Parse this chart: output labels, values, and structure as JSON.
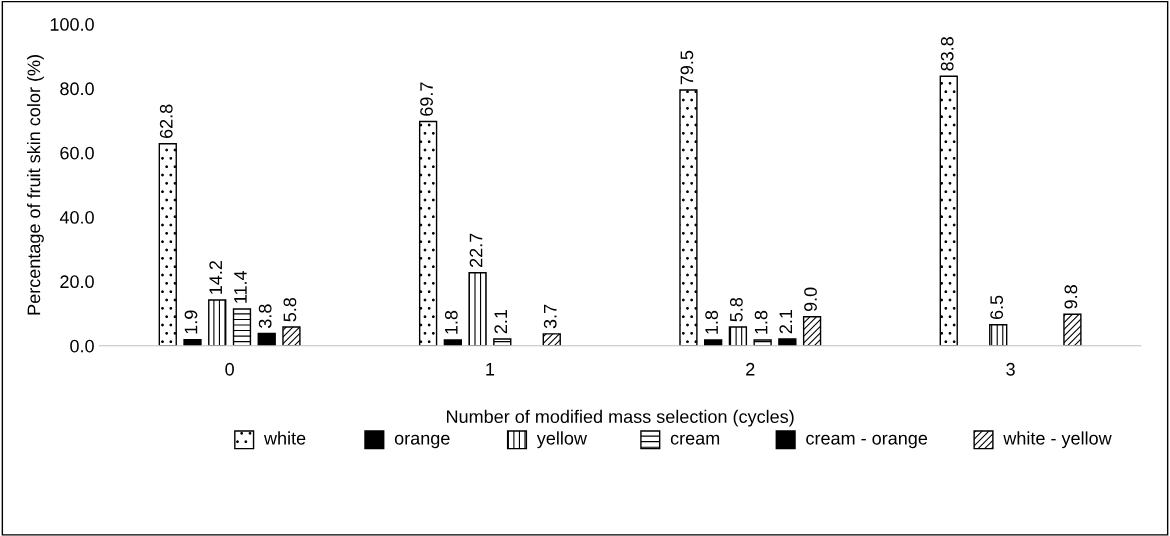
{
  "chart_data": {
    "type": "bar",
    "xlabel": "Number of modified mass selection (cycles)",
    "ylabel": "Percentage of fruit skin color (%)",
    "categories": [
      "0",
      "1",
      "2",
      "3"
    ],
    "series": [
      {
        "name": "white",
        "color": "#ffffff",
        "values": [
          62.8,
          69.7,
          79.5,
          83.8
        ],
        "value_labels": [
          "62.8",
          "69.7",
          "79.5",
          "83.8"
        ]
      },
      {
        "name": "orange",
        "color": "#000000",
        "values": [
          1.9,
          1.8,
          1.8,
          null
        ],
        "value_labels": [
          "1.9",
          "1.8",
          "1.8",
          null
        ]
      },
      {
        "name": "yellow",
        "color": "#ffffff",
        "values": [
          14.2,
          22.7,
          5.8,
          6.5
        ],
        "value_labels": [
          "14.2",
          "22.7",
          "5.8",
          "6.5"
        ]
      },
      {
        "name": "cream",
        "color": "#ffffff",
        "values": [
          11.4,
          2.1,
          1.8,
          null
        ],
        "value_labels": [
          "11.4",
          "2.1",
          "1.8",
          null
        ]
      },
      {
        "name": "cream - orange",
        "color": "#000000",
        "values": [
          3.8,
          null,
          2.1,
          null
        ],
        "value_labels": [
          "3.8",
          null,
          "2.1",
          null
        ]
      },
      {
        "name": "white - yellow",
        "color": "#ffffff",
        "values": [
          5.8,
          3.7,
          9.0,
          9.8
        ],
        "value_labels": [
          "5.8",
          "3.7",
          "9.0",
          "9.8"
        ]
      }
    ],
    "ylim": [
      0,
      100
    ],
    "yticks": [
      {
        "value": 0,
        "label": "0.0"
      },
      {
        "value": 20,
        "label": "20.0"
      },
      {
        "value": 40,
        "label": "40.0"
      },
      {
        "value": 60,
        "label": "60.0"
      },
      {
        "value": 80,
        "label": "80.0"
      },
      {
        "value": 100,
        "label": "100.0"
      }
    ],
    "grid": false,
    "legend": "bottom"
  }
}
